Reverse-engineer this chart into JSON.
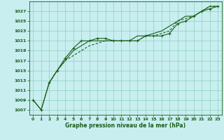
{
  "x_ticks": [
    0,
    1,
    2,
    3,
    4,
    5,
    6,
    7,
    8,
    9,
    10,
    11,
    12,
    13,
    14,
    15,
    16,
    17,
    18,
    19,
    20,
    21,
    22,
    23
  ],
  "yticks": [
    1007,
    1009,
    1011,
    1013,
    1015,
    1017,
    1019,
    1021,
    1023,
    1025,
    1027
  ],
  "ylim": [
    1006,
    1029
  ],
  "xlim": [
    -0.5,
    23.5
  ],
  "line1_x": [
    0,
    1,
    2,
    3,
    4,
    5,
    6,
    7,
    8,
    9,
    10,
    11,
    12,
    13,
    14,
    15,
    16,
    17,
    18,
    19,
    20,
    21,
    22,
    23
  ],
  "line1_y": [
    1009,
    1007,
    1012.5,
    1015,
    1017.5,
    1019.5,
    1021,
    1021,
    1021.5,
    1021.5,
    1021,
    1021,
    1021,
    1021,
    1022,
    1022,
    1022,
    1022.5,
    1024.5,
    1025,
    1026,
    1027,
    1027.5,
    1028
  ],
  "line2_x": [
    2,
    3,
    4,
    5,
    6,
    7,
    8,
    9,
    10,
    11,
    12,
    13,
    14,
    15,
    16,
    17,
    18,
    19,
    20,
    21,
    22,
    23
  ],
  "line2_y": [
    1012.5,
    1015,
    1017,
    1019,
    1020,
    1021,
    1021,
    1021,
    1021,
    1021,
    1021,
    1022,
    1022,
    1022.5,
    1023,
    1024,
    1025,
    1026,
    1026,
    1027,
    1028,
    1028
  ],
  "line3_x": [
    2,
    3,
    4,
    5,
    6,
    7,
    8,
    9,
    10,
    11,
    12,
    13,
    14,
    15,
    16,
    17,
    18,
    19,
    20,
    21,
    22,
    23
  ],
  "line3_y": [
    1012.5,
    1015,
    1017,
    1018,
    1019,
    1020,
    1020.5,
    1021,
    1021,
    1021,
    1021,
    1021,
    1022,
    1022,
    1022.5,
    1023,
    1025,
    1025.5,
    1026,
    1027,
    1028,
    1028
  ],
  "xlabel": "Graphe pression niveau de la mer (hPa)",
  "bg_color": "#c8eef0",
  "grid_color": "#8ecfbb",
  "line_color": "#1a5c1a",
  "tick_color": "#1a5c1a",
  "label_color": "#1a5c1a"
}
